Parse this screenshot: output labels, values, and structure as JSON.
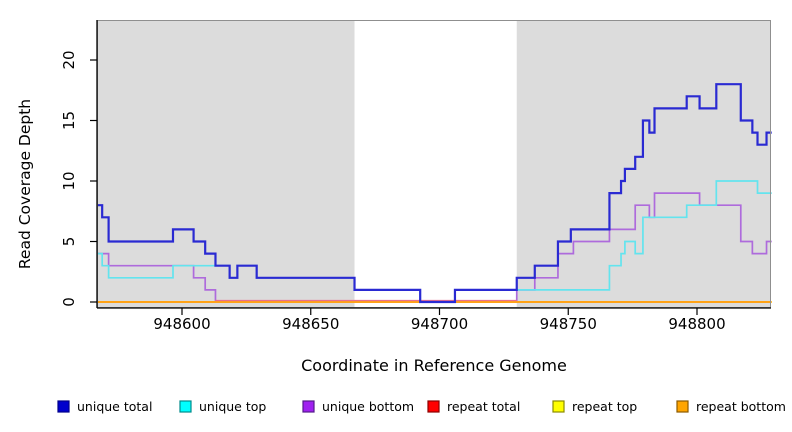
{
  "chart_data": {
    "type": "line",
    "subtype": "step-coverage-plot",
    "title": "",
    "xlabel": "Coordinate in Reference Genome",
    "ylabel": "Read Coverage Depth",
    "xlim": [
      948567,
      948829
    ],
    "ylim": [
      0,
      23.3
    ],
    "grid": false,
    "plot_bg": "#DCDCDC",
    "highlight_band": {
      "x0": 948667,
      "x1": 948730,
      "color": "#FFFFFF"
    },
    "x_ticks": [
      {
        "value": 948600,
        "label": "948600"
      },
      {
        "value": 948650,
        "label": "948650"
      },
      {
        "value": 948700,
        "label": "948700"
      },
      {
        "value": 948750,
        "label": "948750"
      },
      {
        "value": 948800,
        "label": "948800"
      }
    ],
    "y_ticks": [
      {
        "value": 0,
        "label": "0"
      },
      {
        "value": 5,
        "label": "5"
      },
      {
        "value": 10,
        "label": "10"
      },
      {
        "value": 15,
        "label": "15"
      },
      {
        "value": 20,
        "label": "20"
      }
    ],
    "draw_order": [
      "unique_bottom",
      "repeat_top",
      "repeat_bottom",
      "repeat_total",
      "unique_top",
      "unique_total"
    ],
    "series": {
      "unique_total": {
        "name": "unique total",
        "color": "#2A2AD2",
        "width": 2.2,
        "points": [
          [
            948567,
            8
          ],
          [
            948569,
            7
          ],
          [
            948571.5,
            5
          ],
          [
            948596.5,
            6
          ],
          [
            948604.5,
            5
          ],
          [
            948609,
            4
          ],
          [
            948613,
            3
          ],
          [
            948618.5,
            2
          ],
          [
            948621.5,
            3
          ],
          [
            948629,
            2
          ],
          [
            948667,
            1
          ],
          [
            948692.5,
            0
          ],
          [
            948706,
            1
          ],
          [
            948730,
            2
          ],
          [
            948737,
            3
          ],
          [
            948746,
            5
          ],
          [
            948751,
            6
          ],
          [
            948766,
            9
          ],
          [
            948770.5,
            10
          ],
          [
            948772,
            11
          ],
          [
            948776,
            12
          ],
          [
            948779,
            15
          ],
          [
            948781.5,
            14
          ],
          [
            948783.5,
            16
          ],
          [
            948796,
            17
          ],
          [
            948801,
            16
          ],
          [
            948807.5,
            18
          ],
          [
            948817,
            15
          ],
          [
            948821.5,
            14
          ],
          [
            948823.5,
            13
          ],
          [
            948827,
            14
          ]
        ]
      },
      "unique_top": {
        "name": "unique top",
        "color": "#63E4EE",
        "width": 1.7,
        "points": [
          [
            948567,
            4
          ],
          [
            948569,
            3
          ],
          [
            948571.5,
            2
          ],
          [
            948596.5,
            3
          ],
          [
            948618.5,
            2
          ],
          [
            948621.5,
            3
          ],
          [
            948629,
            2
          ],
          [
            948667,
            1
          ],
          [
            948692.5,
            0
          ],
          [
            948706,
            1
          ],
          [
            948766,
            3
          ],
          [
            948770.5,
            4
          ],
          [
            948772,
            5
          ],
          [
            948776,
            4
          ],
          [
            948779,
            7
          ],
          [
            948796,
            8
          ],
          [
            948807.5,
            10
          ],
          [
            948823.5,
            9
          ]
        ]
      },
      "unique_bottom": {
        "name": "unique bottom",
        "color": "#AE6BDC",
        "width": 1.7,
        "points": [
          [
            948567,
            4
          ],
          [
            948571.5,
            3
          ],
          [
            948604.5,
            2
          ],
          [
            948609,
            1
          ],
          [
            948613,
            0
          ],
          [
            948730,
            1
          ],
          [
            948737,
            2
          ],
          [
            948746,
            4
          ],
          [
            948752,
            5
          ],
          [
            948766,
            6
          ],
          [
            948776,
            8
          ],
          [
            948781.5,
            7
          ],
          [
            948783.5,
            9
          ],
          [
            948801,
            8
          ],
          [
            948817,
            5
          ],
          [
            948821.5,
            4
          ],
          [
            948827,
            5
          ]
        ]
      },
      "repeat_total": {
        "name": "repeat total",
        "color": "#E8708E",
        "width": 1.3,
        "yoffset": -1.5,
        "xend": 948730,
        "points": [
          [
            948613,
            0
          ]
        ]
      },
      "repeat_top": {
        "name": "repeat top",
        "color": "#FFFF00",
        "width": 2,
        "points": [
          [
            948567,
            0
          ]
        ]
      },
      "repeat_bottom": {
        "name": "repeat bottom",
        "color": "#FFA317",
        "width": 2,
        "points": [
          [
            948567,
            0
          ]
        ]
      }
    }
  },
  "legend": {
    "items": [
      {
        "label": "unique total",
        "fill": "#0000CD",
        "border": "#00008B"
      },
      {
        "label": "unique top",
        "fill": "#00FFFF",
        "border": "#008B8B"
      },
      {
        "label": "unique bottom",
        "fill": "#A020F0",
        "border": "#551A8B"
      },
      {
        "label": "repeat total",
        "fill": "#FF0000",
        "border": "#8B0000"
      },
      {
        "label": "repeat top",
        "fill": "#FFFF00",
        "border": "#8B8B00"
      },
      {
        "label": "repeat bottom",
        "fill": "#FFA500",
        "border": "#8B5A00"
      }
    ]
  }
}
